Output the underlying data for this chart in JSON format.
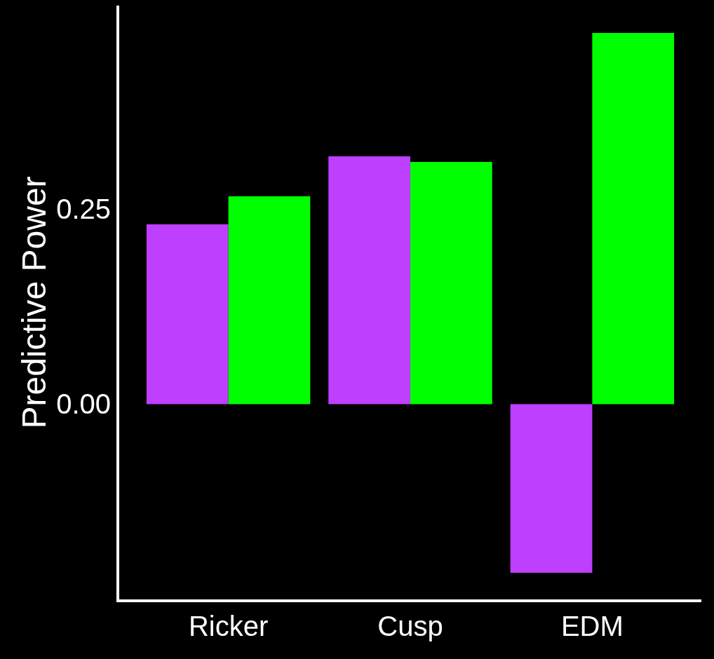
{
  "chart_data": {
    "type": "bar",
    "ylabel": "Predictive Power",
    "categories": [
      "Ricker",
      "Cusp",
      "EDM"
    ],
    "series": [
      {
        "color": "#bf3fff",
        "values": [
          0.23,
          0.317,
          -0.216
        ]
      },
      {
        "color": "#00ff00",
        "values": [
          0.266,
          0.31,
          0.475
        ]
      }
    ],
    "ylim": [
      -0.25,
      0.51
    ],
    "yticks": [
      {
        "value": 0,
        "label": "0.00"
      },
      {
        "value": 0.25,
        "label": "0.25"
      }
    ],
    "grid": false
  }
}
